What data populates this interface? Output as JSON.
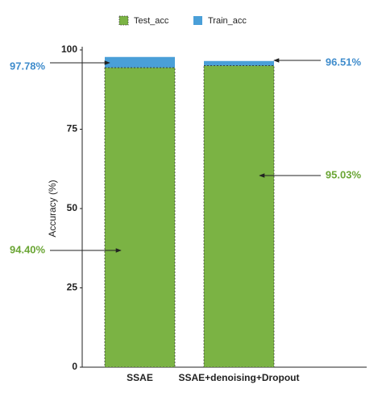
{
  "chart_data": {
    "type": "overlap_bar",
    "categories": [
      "SSAE",
      "SSAE+denoising+Dropout"
    ],
    "y_label": "Accuracy (%)",
    "series": [
      {
        "name": "Train_acc",
        "color": "#4a9fd8",
        "label_color": "#3f8ccc",
        "values": [
          97.78,
          96.51
        ],
        "value_labels": [
          "97.78%",
          "96.51%"
        ]
      },
      {
        "name": "Test_acc",
        "color": "#7bb344",
        "label_color": "#6aa534",
        "values": [
          94.4,
          95.03
        ],
        "value_labels": [
          "94.40%",
          "95.03%"
        ]
      }
    ],
    "ylim": [
      0,
      100
    ],
    "yticks": [
      0,
      25,
      50,
      75,
      100
    ],
    "grid": false
  }
}
